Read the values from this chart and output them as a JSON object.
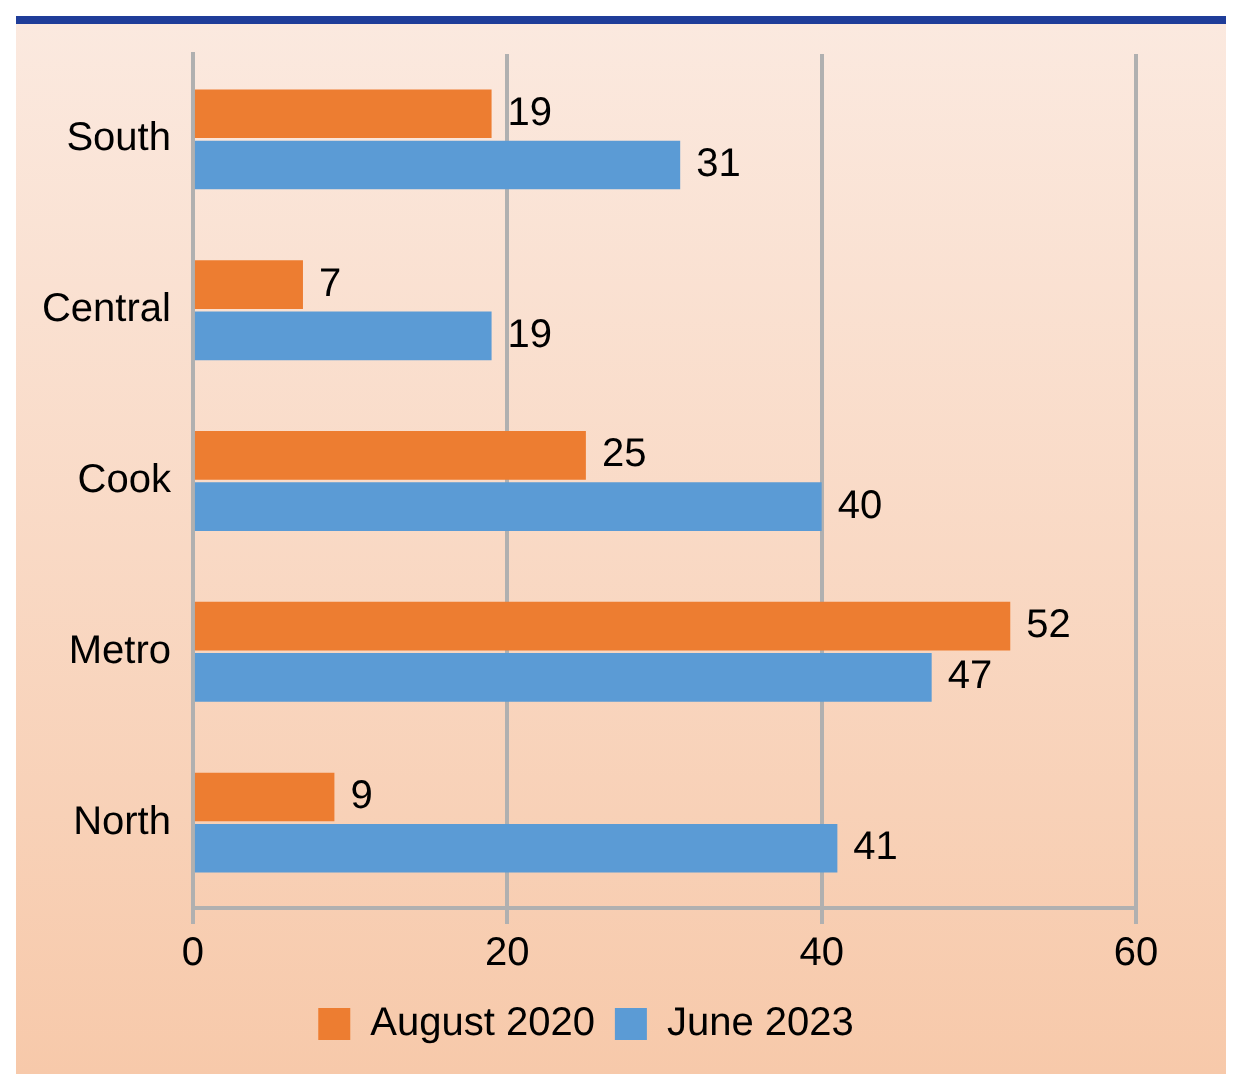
{
  "chart_data": {
    "type": "bar",
    "orientation": "horizontal",
    "categories": [
      "South",
      "Central",
      "Cook",
      "Metro",
      "North"
    ],
    "series": [
      {
        "name": "August 2020",
        "color": "#ed7d31",
        "values": [
          19,
          7,
          25,
          52,
          9
        ]
      },
      {
        "name": "June 2023",
        "color": "#5b9bd5",
        "values": [
          31,
          19,
          40,
          47,
          41
        ]
      }
    ],
    "xlim": [
      0,
      60
    ],
    "xticks": [
      0,
      20,
      40,
      60
    ],
    "grid": "x",
    "legend": "bottom",
    "data_labels": true
  }
}
